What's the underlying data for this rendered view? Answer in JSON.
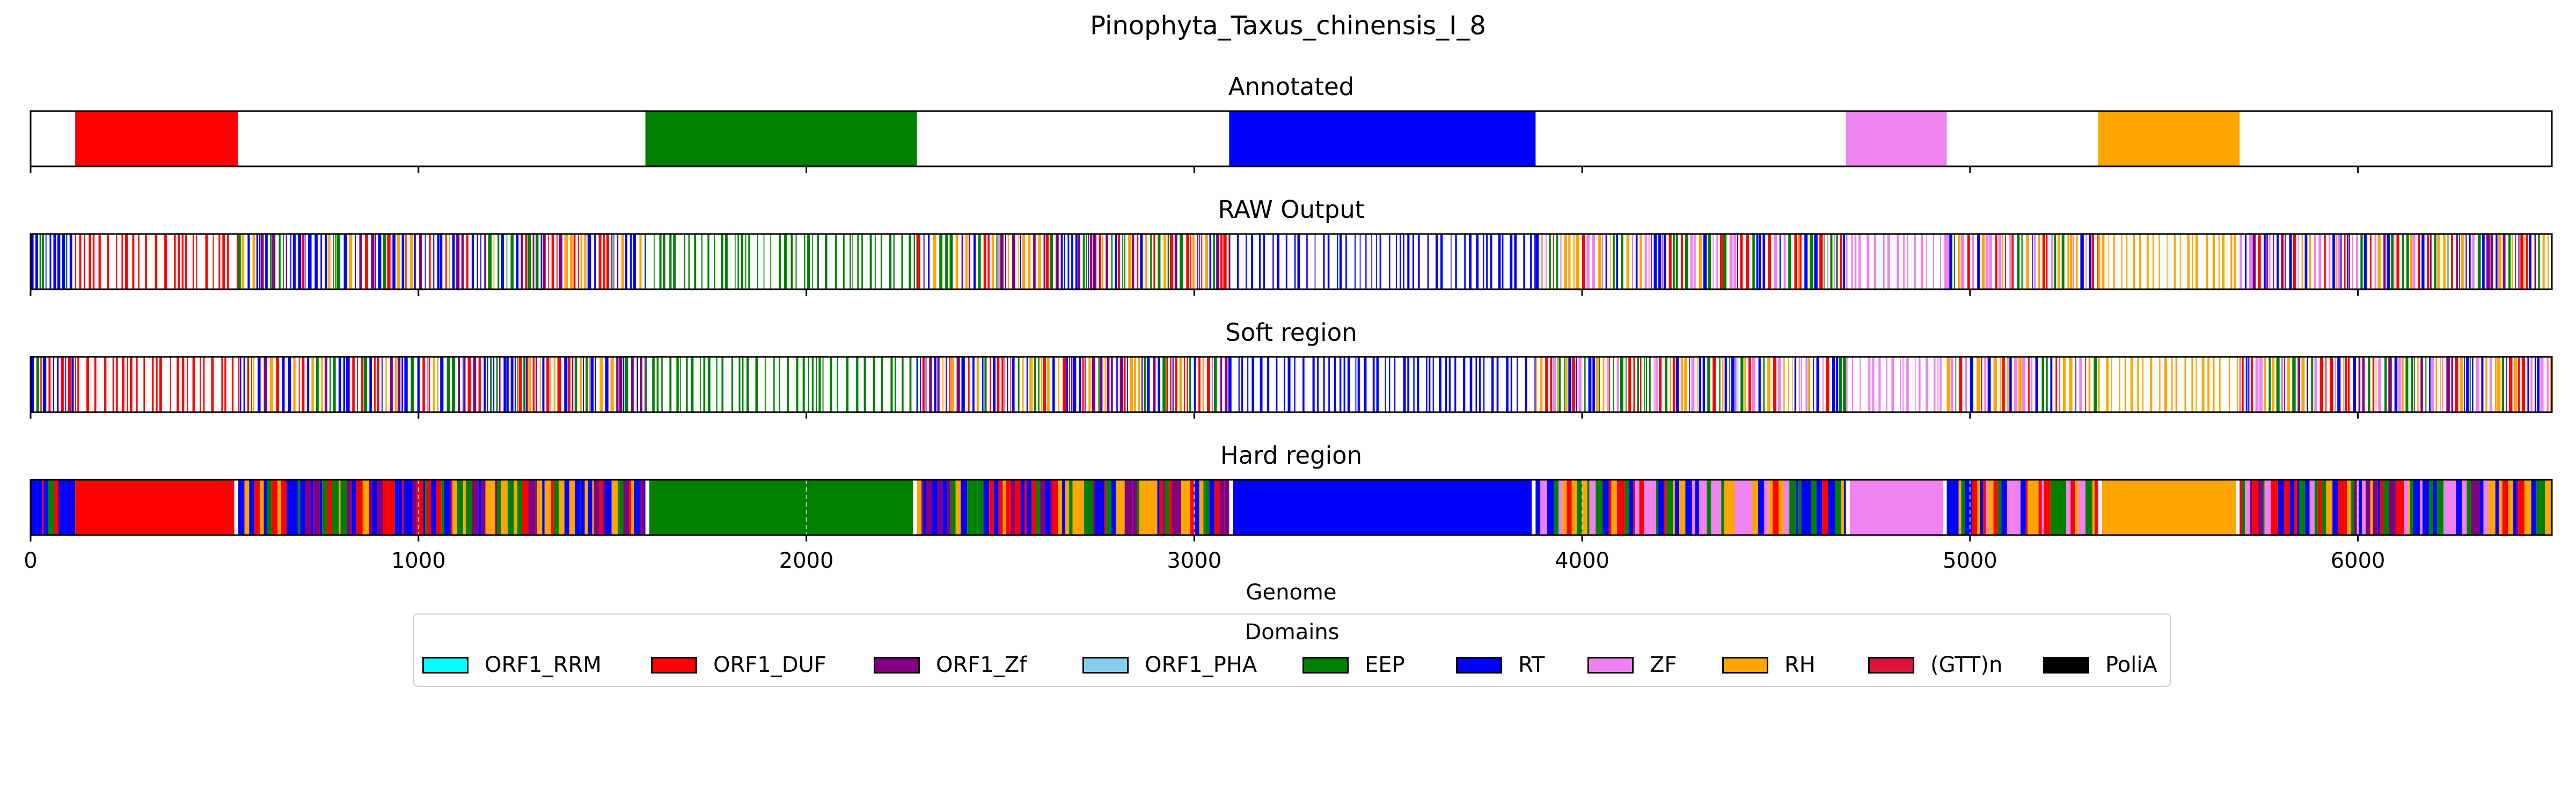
{
  "chart_data": {
    "type": "genome-track",
    "title": "Pinophyta_Taxus_chinensis_I_8",
    "xlabel": "Genome",
    "xlim": [
      0,
      6500
    ],
    "xticks": [
      0,
      1000,
      2000,
      3000,
      4000,
      5000,
      6000
    ],
    "grid": "dashed-vertical-on-hard-region",
    "domains": [
      {
        "name": "ORF1_RRM",
        "color": "#00ffff"
      },
      {
        "name": "ORF1_DUF",
        "color": "#ff0000"
      },
      {
        "name": "ORF1_Zf",
        "color": "#800080"
      },
      {
        "name": "ORF1_PHA",
        "color": "#87ceeb"
      },
      {
        "name": "EEP",
        "color": "#008000"
      },
      {
        "name": "RT",
        "color": "#0000ff"
      },
      {
        "name": "ZF",
        "color": "#ee82ee"
      },
      {
        "name": "RH",
        "color": "#ffa500"
      },
      {
        "name": "(GTT)n",
        "color": "#dc143c"
      },
      {
        "name": "PoliA",
        "color": "#000000"
      }
    ],
    "legend": {
      "title": "Domains",
      "position": "bottom-center"
    },
    "tracks": [
      {
        "title": "Annotated",
        "segments": [
          {
            "start": 115,
            "end": 535,
            "domain": "ORF1_DUF"
          },
          {
            "start": 1585,
            "end": 2285,
            "domain": "EEP"
          },
          {
            "start": 3090,
            "end": 3880,
            "domain": "RT"
          },
          {
            "start": 4680,
            "end": 4940,
            "domain": "ZF"
          },
          {
            "start": 5330,
            "end": 5695,
            "domain": "RH"
          }
        ]
      },
      {
        "title": "RAW Output",
        "pattern": "dense",
        "seed": 17
      },
      {
        "title": "Soft region",
        "pattern": "dense",
        "seed": 29
      },
      {
        "title": "Hard region",
        "pattern": "filled",
        "seed": 43
      }
    ]
  },
  "legend_title": "Domains"
}
